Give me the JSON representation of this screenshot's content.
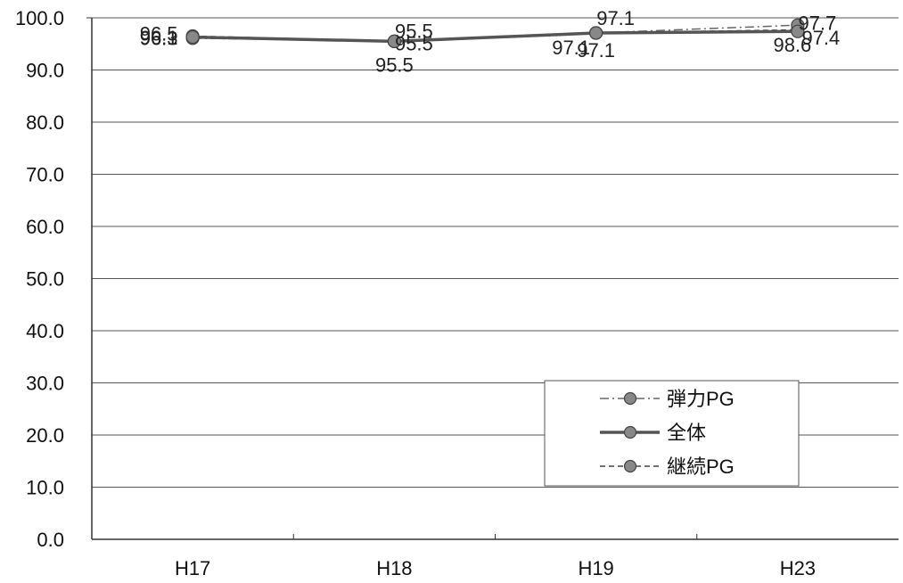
{
  "chart_data": {
    "type": "line",
    "categories": [
      "H17",
      "H18",
      "H19",
      "H23"
    ],
    "ylim": [
      0,
      100
    ],
    "yticks": [
      "0.0",
      "10.0",
      "20.0",
      "30.0",
      "40.0",
      "50.0",
      "60.0",
      "70.0",
      "80.0",
      "90.0",
      "100.0"
    ],
    "grid": true,
    "legend_position": "bottom-right",
    "series": [
      {
        "name": "弾力PG",
        "style": "dash-dot",
        "color": "#666666",
        "values": [
          96.1,
          95.5,
          97.1,
          98.6
        ],
        "labels": [
          "96.1",
          "95.5",
          "97.1",
          "98.6"
        ]
      },
      {
        "name": "全体",
        "style": "solid",
        "color": "#555555",
        "values": [
          96.3,
          95.5,
          97.1,
          97.4
        ],
        "labels": [
          "96.3",
          "95.5",
          "97.1",
          "97.4"
        ]
      },
      {
        "name": "継続PG",
        "style": "dashed",
        "color": "#444444",
        "values": [
          96.5,
          95.5,
          97.1,
          97.7
        ],
        "labels": [
          "96.5",
          "95.5",
          "97.1",
          "97.7"
        ]
      }
    ]
  }
}
